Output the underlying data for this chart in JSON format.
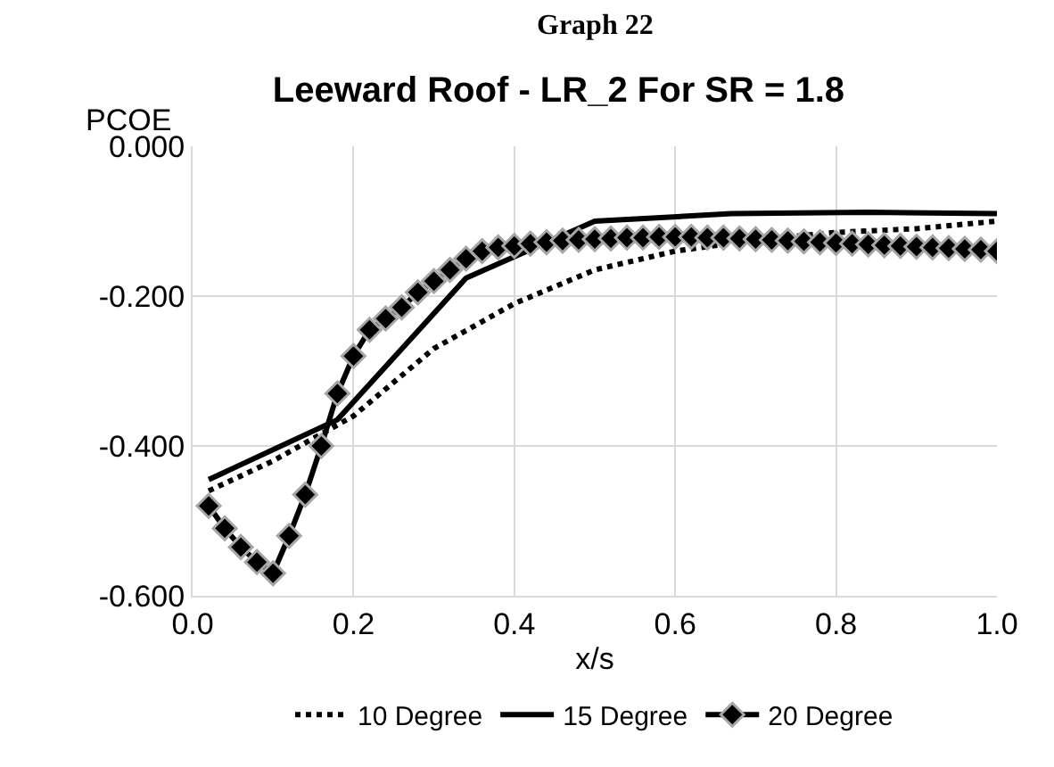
{
  "chart_data": {
    "type": "line",
    "title": "Leeward Roof - LR_2 For SR = 1.8",
    "annotations": [
      "Graph 22"
    ],
    "xlabel": "x/s",
    "ylabel": "PCOE",
    "xlim": [
      0,
      1
    ],
    "xticks": [
      {
        "value": 0,
        "label": "0.0"
      },
      {
        "value": 0.2,
        "label": "0.2"
      },
      {
        "value": 0.4,
        "label": "0.4"
      },
      {
        "value": 0.6,
        "label": "0.6"
      },
      {
        "value": 0.8,
        "label": "0.8"
      },
      {
        "value": 1,
        "label": "1.0"
      }
    ],
    "ylim": [
      -0.6,
      0
    ],
    "yticks": [
      {
        "value": -0.6,
        "label": "-0.600"
      },
      {
        "value": -0.4,
        "label": "-0.400"
      },
      {
        "value": -0.2,
        "label": "-0.200"
      },
      {
        "value": 0,
        "label": "0.000"
      }
    ],
    "grid": true,
    "legend": "bottom",
    "series": [
      {
        "name": "10 Degree",
        "color": "#000000",
        "line_style": "dotted",
        "marker": "none",
        "x": [
          0.02,
          0.1,
          0.2,
          0.3,
          0.4,
          0.5,
          0.6,
          0.7,
          0.8,
          0.9,
          1.0
        ],
        "values": [
          -0.46,
          -0.42,
          -0.36,
          -0.27,
          -0.21,
          -0.165,
          -0.14,
          -0.125,
          -0.115,
          -0.11,
          -0.1
        ]
      },
      {
        "name": "15 Degree",
        "color": "#000000",
        "line_style": "solid",
        "marker": "none",
        "x": [
          0.02,
          0.18,
          0.34,
          0.5,
          0.67,
          0.84,
          1.0
        ],
        "values": [
          -0.445,
          -0.365,
          -0.176,
          -0.1,
          -0.09,
          -0.088,
          -0.09
        ]
      },
      {
        "name": "20 Degree",
        "color": "#000000",
        "line_style": "solid",
        "marker": "diamond",
        "x": [
          0.02,
          0.04,
          0.06,
          0.08,
          0.1,
          0.12,
          0.14,
          0.16,
          0.18,
          0.2,
          0.22,
          0.24,
          0.26,
          0.28,
          0.3,
          0.32,
          0.34,
          0.36,
          0.38,
          0.4,
          0.42,
          0.44,
          0.46,
          0.48,
          0.5,
          0.52,
          0.54,
          0.56,
          0.58,
          0.6,
          0.62,
          0.64,
          0.66,
          0.68,
          0.7,
          0.72,
          0.74,
          0.76,
          0.78,
          0.8,
          0.82,
          0.84,
          0.86,
          0.88,
          0.9,
          0.92,
          0.94,
          0.96,
          0.98,
          1.0
        ],
        "values": [
          -0.48,
          -0.51,
          -0.535,
          -0.555,
          -0.57,
          -0.52,
          -0.465,
          -0.4,
          -0.33,
          -0.28,
          -0.245,
          -0.23,
          -0.215,
          -0.195,
          -0.18,
          -0.165,
          -0.15,
          -0.14,
          -0.135,
          -0.133,
          -0.13,
          -0.128,
          -0.126,
          -0.125,
          -0.124,
          -0.123,
          -0.122,
          -0.122,
          -0.121,
          -0.121,
          -0.121,
          -0.122,
          -0.122,
          -0.123,
          -0.124,
          -0.125,
          -0.126,
          -0.127,
          -0.128,
          -0.129,
          -0.13,
          -0.131,
          -0.132,
          -0.133,
          -0.134,
          -0.135,
          -0.136,
          -0.137,
          -0.138,
          -0.14
        ]
      }
    ]
  }
}
